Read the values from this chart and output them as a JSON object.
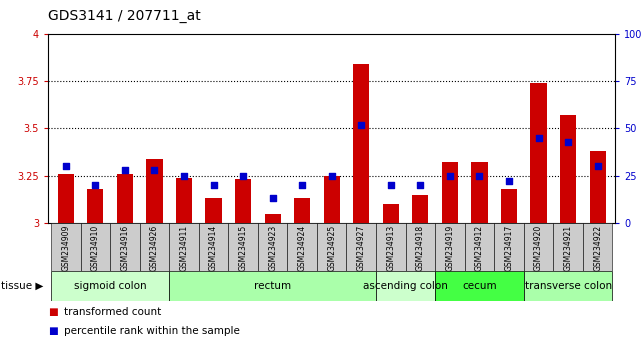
{
  "title": "GDS3141 / 207711_at",
  "samples": [
    "GSM234909",
    "GSM234910",
    "GSM234916",
    "GSM234926",
    "GSM234911",
    "GSM234914",
    "GSM234915",
    "GSM234923",
    "GSM234924",
    "GSM234925",
    "GSM234927",
    "GSM234913",
    "GSM234918",
    "GSM234919",
    "GSM234912",
    "GSM234917",
    "GSM234920",
    "GSM234921",
    "GSM234922"
  ],
  "bar_values": [
    3.26,
    3.18,
    3.26,
    3.34,
    3.24,
    3.13,
    3.23,
    3.05,
    3.13,
    3.25,
    3.84,
    3.1,
    3.15,
    3.32,
    3.32,
    3.18,
    3.74,
    3.57,
    3.38
  ],
  "dot_values": [
    30,
    20,
    28,
    28,
    25,
    20,
    25,
    13,
    20,
    25,
    52,
    20,
    20,
    25,
    25,
    22,
    45,
    43,
    30
  ],
  "bar_color": "#cc0000",
  "dot_color": "#0000cc",
  "ylim_left": [
    3.0,
    4.0
  ],
  "ylim_right": [
    0,
    100
  ],
  "yticks_left": [
    3.0,
    3.25,
    3.5,
    3.75,
    4.0
  ],
  "yticks_right": [
    0,
    25,
    50,
    75,
    100
  ],
  "ytick_labels_left": [
    "3",
    "3.25",
    "3.5",
    "3.75",
    "4"
  ],
  "ytick_labels_right": [
    "0",
    "25",
    "50",
    "75",
    "100%"
  ],
  "hlines": [
    3.25,
    3.5,
    3.75
  ],
  "tissue_groups": [
    {
      "label": "sigmoid colon",
      "start": 0,
      "end": 4,
      "color": "#ccffcc"
    },
    {
      "label": "rectum",
      "start": 4,
      "end": 11,
      "color": "#aaffaa"
    },
    {
      "label": "ascending colon",
      "start": 11,
      "end": 13,
      "color": "#ccffcc"
    },
    {
      "label": "cecum",
      "start": 13,
      "end": 16,
      "color": "#44ff44"
    },
    {
      "label": "transverse colon",
      "start": 16,
      "end": 19,
      "color": "#aaffaa"
    }
  ],
  "legend_items": [
    {
      "label": "transformed count",
      "color": "#cc0000"
    },
    {
      "label": "percentile rank within the sample",
      "color": "#0000cc"
    }
  ],
  "bar_width": 0.55,
  "title_fontsize": 10,
  "tick_fontsize": 7,
  "tissue_fontsize": 7.5,
  "legend_fontsize": 7.5
}
